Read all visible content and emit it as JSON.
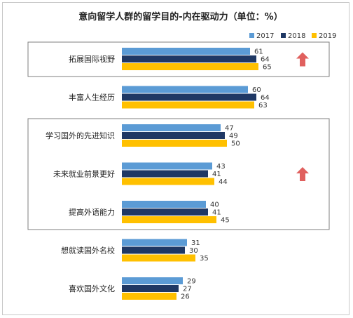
{
  "chart_data": {
    "type": "bar",
    "orientation": "horizontal",
    "title": "意向留学人群的留学目的-内在驱动力（单位：%）",
    "categories": [
      "拓展国际视野",
      "丰富人生经历",
      "学习国外的先进知识",
      "未来就业前景更好",
      "提高外语能力",
      "想就读国外名校",
      "喜欢国外文化"
    ],
    "series": [
      {
        "name": "2017",
        "values": [
          61,
          60,
          47,
          43,
          40,
          31,
          29
        ]
      },
      {
        "name": "2018",
        "values": [
          64,
          64,
          49,
          41,
          41,
          30,
          27
        ]
      },
      {
        "name": "2019",
        "values": [
          65,
          63,
          50,
          44,
          45,
          35,
          26
        ]
      }
    ],
    "xlim": [
      0,
      70
    ],
    "legend_position": "top-right",
    "grid": false,
    "highlight_boxes": [
      {
        "categories": [
          "拓展国际视野"
        ],
        "trend": "up"
      },
      {
        "categories": [
          "学习国外的先进知识",
          "未来就业前景更好",
          "提高外语能力"
        ],
        "trend": "up"
      }
    ],
    "colors": {
      "2017": "#5b9bd5",
      "2018": "#1f3864",
      "2019": "#ffc000",
      "arrow": "#e0605e",
      "box": "#7f7f7f"
    }
  }
}
